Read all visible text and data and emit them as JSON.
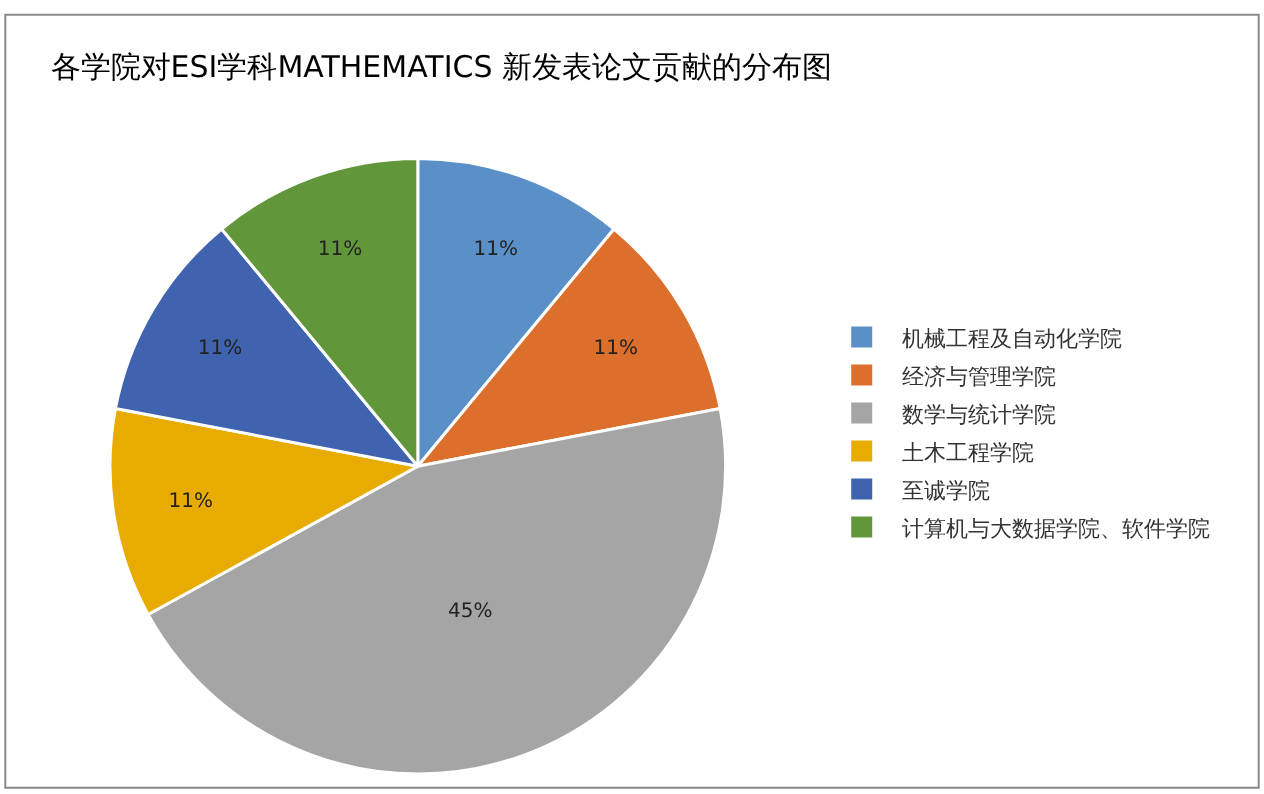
{
  "chart_data": {
    "type": "pie",
    "title": "各学院对ESI学科MATHEMATICS 新发表论文贡献的分布图",
    "categories": [
      "机械工程及自动化学院",
      "经济与管理学院",
      "数学与统计学院",
      "土木工程学院",
      "至诚学院",
      "计算机与大数据学院、软件学院"
    ],
    "values": [
      11,
      11,
      45,
      11,
      11,
      11
    ],
    "value_labels": [
      "11%",
      "11%",
      "45%",
      "11%",
      "11%",
      "11%"
    ],
    "colors": [
      "#5b8fc8",
      "#dc6f2c",
      "#a5a5a5",
      "#e8ab00",
      "#3f63ae",
      "#61973a"
    ],
    "legend": "right"
  }
}
